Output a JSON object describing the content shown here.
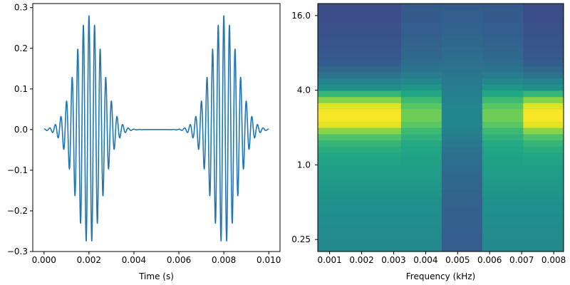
{
  "chart_data": [
    {
      "type": "line",
      "title": "",
      "xlabel": "Time (s)",
      "ylabel": "",
      "xlim": [
        -0.0005,
        0.0105
      ],
      "ylim": [
        -0.3,
        0.31
      ],
      "grid": false,
      "xticks": [
        0.0,
        0.002,
        0.004,
        0.006,
        0.008,
        0.01
      ],
      "xtick_labels": [
        "0.000",
        "0.002",
        "0.004",
        "0.006",
        "0.008",
        "0.010"
      ],
      "yticks": [
        -0.3,
        -0.2,
        -0.1,
        0.0,
        0.1,
        0.2,
        0.3
      ],
      "ytick_labels": [
        "−0.3",
        "−0.2",
        "−0.1",
        "0.0",
        "0.1",
        "0.2",
        "0.3"
      ],
      "series": [
        {
          "color": "#1f77b4",
          "x_range": [
            0.0,
            0.01
          ],
          "bursts": [
            {
              "center": 0.002,
              "amplitude": 0.28,
              "frequency_hz": 4000,
              "sigma": 0.0006
            },
            {
              "center": 0.008,
              "amplitude": 0.28,
              "frequency_hz": 4000,
              "sigma": 0.0006
            }
          ]
        }
      ]
    },
    {
      "type": "heatmap",
      "title": "",
      "xlabel": "Frequency (kHz)",
      "ylabel": "",
      "xlim": [
        0.00063,
        0.00831
      ],
      "ylim": [
        0.2,
        20
      ],
      "yscale": "log2",
      "xticks": [
        0.001,
        0.002,
        0.003,
        0.004,
        0.005,
        0.006,
        0.007,
        0.008
      ],
      "xtick_labels": [
        "0.001",
        "0.002",
        "0.003",
        "0.004",
        "0.005",
        "0.006",
        "0.007",
        "0.008"
      ],
      "yticks": [
        0.25,
        1.0,
        4.0,
        16.0
      ],
      "ytick_labels": [
        "0.25",
        "1.0",
        "4.0",
        "16.0"
      ],
      "colormap": "viridis",
      "columns": [
        {
          "x_start": 0.00063,
          "x_end": 0.00323,
          "profile": "peak"
        },
        {
          "x_start": 0.00323,
          "x_end": 0.0045,
          "profile": "mid"
        },
        {
          "x_start": 0.0045,
          "x_end": 0.00577,
          "profile": "low"
        },
        {
          "x_start": 0.00577,
          "x_end": 0.00705,
          "profile": "mid"
        },
        {
          "x_start": 0.00705,
          "x_end": 0.00831,
          "profile": "peak"
        }
      ],
      "row_values": {
        "peak": [
          0.47,
          0.47,
          0.48,
          0.48,
          0.49,
          0.49,
          0.5,
          0.5,
          0.51,
          0.52,
          0.53,
          0.54,
          0.55,
          0.56,
          0.58,
          0.6,
          0.62,
          0.66,
          0.72,
          0.82,
          0.96,
          0.99,
          0.99,
          0.95,
          0.82,
          0.66,
          0.5,
          0.45,
          0.38,
          0.33,
          0.3,
          0.28,
          0.27,
          0.26,
          0.26,
          0.25,
          0.25,
          0.24,
          0.24,
          0.24
        ],
        "mid": [
          0.47,
          0.47,
          0.48,
          0.48,
          0.49,
          0.49,
          0.5,
          0.5,
          0.51,
          0.52,
          0.53,
          0.54,
          0.55,
          0.56,
          0.57,
          0.58,
          0.59,
          0.61,
          0.64,
          0.68,
          0.74,
          0.78,
          0.78,
          0.74,
          0.68,
          0.6,
          0.52,
          0.47,
          0.42,
          0.38,
          0.36,
          0.34,
          0.33,
          0.32,
          0.31,
          0.3,
          0.3,
          0.29,
          0.29,
          0.28
        ],
        "low": [
          0.3,
          0.3,
          0.3,
          0.31,
          0.31,
          0.31,
          0.31,
          0.32,
          0.32,
          0.32,
          0.33,
          0.33,
          0.34,
          0.35,
          0.36,
          0.37,
          0.38,
          0.4,
          0.42,
          0.44,
          0.45,
          0.46,
          0.46,
          0.45,
          0.44,
          0.43,
          0.42,
          0.41,
          0.4,
          0.38,
          0.37,
          0.36,
          0.35,
          0.34,
          0.33,
          0.32,
          0.31,
          0.3,
          0.3,
          0.29
        ]
      }
    }
  ]
}
